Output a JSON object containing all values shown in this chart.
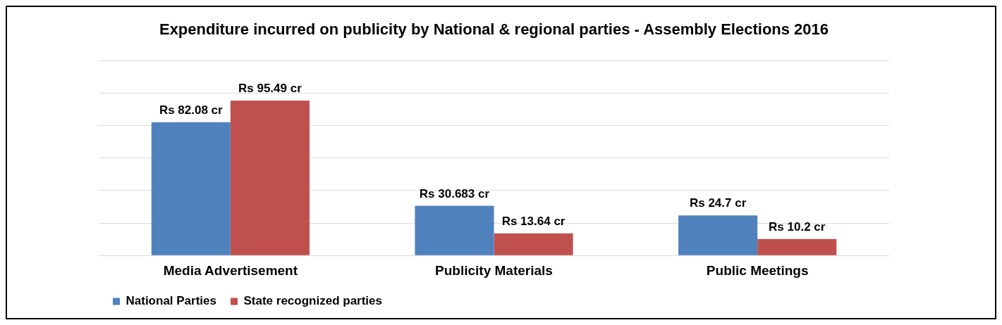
{
  "chart_data": {
    "type": "bar",
    "title": "Expenditure incurred on publicity by National & regional parties - Assembly Elections 2016",
    "categories": [
      "Media Advertisement",
      "Publicity Materials",
      "Public Meetings"
    ],
    "series": [
      {
        "name": "National Parties",
        "color": "#4f81bd",
        "values": [
          82.08,
          30.683,
          24.7
        ],
        "value_labels": [
          "Rs 82.08 cr",
          "Rs 30.683 cr",
          "Rs 24.7 cr"
        ]
      },
      {
        "name": "State recognized parties",
        "color": "#c0504d",
        "values": [
          95.49,
          13.64,
          10.2
        ],
        "value_labels": [
          "Rs 95.49 cr",
          "Rs 13.64 cr",
          "Rs 10.2 cr"
        ]
      }
    ],
    "ylim": [
      0,
      120
    ],
    "yticks": [
      {
        "value": 0,
        "label": null
      },
      {
        "value": 20,
        "label": null
      },
      {
        "value": 40,
        "label": null
      },
      {
        "value": 60,
        "label": null
      },
      {
        "value": 80,
        "label": null
      },
      {
        "value": 100,
        "label": null
      },
      {
        "value": 120,
        "label": null
      }
    ],
    "grid": "y",
    "tick_labels": "x",
    "legend": "bottom left"
  }
}
